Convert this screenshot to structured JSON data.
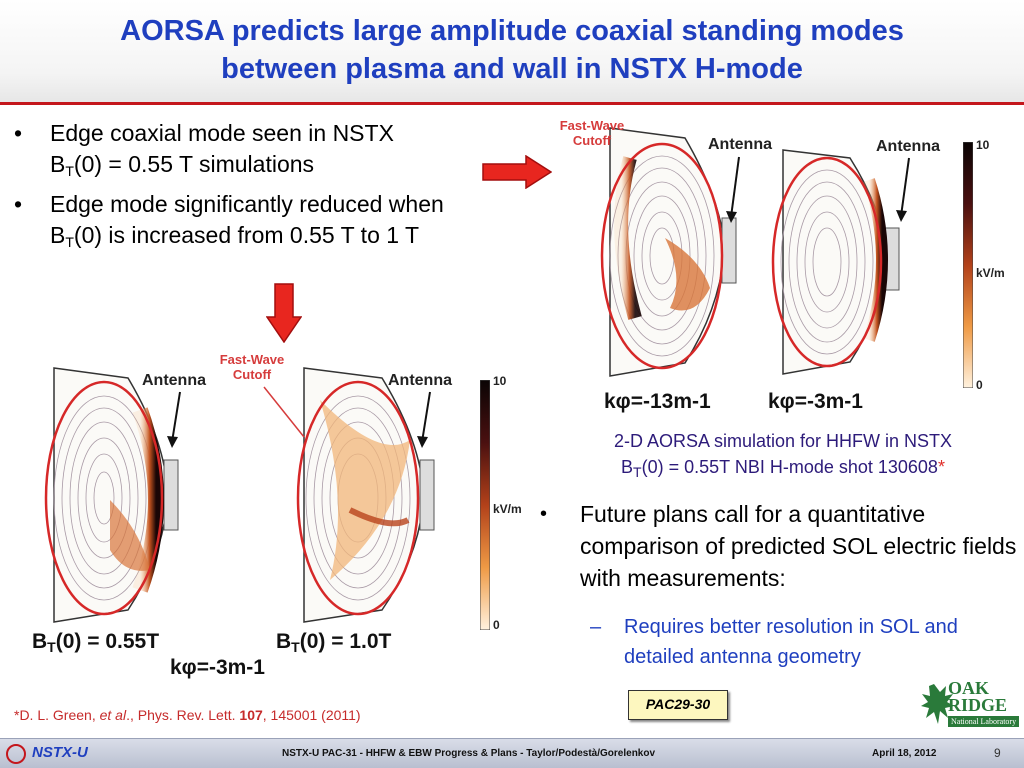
{
  "title": {
    "line1": "AORSA predicts large amplitude coaxial standing modes",
    "line2": "between plasma and wall in NSTX H-mode"
  },
  "bullets": [
    {
      "pre": "Edge coaxial mode seen in NSTX",
      "b": "B",
      "sub": "T",
      "post": "(0) = 0.55 T simulations"
    },
    {
      "pre": "Edge mode significantly reduced when",
      "b": "B",
      "sub": "T",
      "post": "(0) is increased from 0.55 T to 1 T"
    }
  ],
  "bullet_glyph": "•",
  "plots": {
    "top_left": {
      "antenna": "Antenna",
      "cutoff_line1": "Fast-Wave",
      "cutoff_line2": "Cutoff",
      "k_label": "kφ=-13m-1"
    },
    "top_right": {
      "antenna": "Antenna",
      "k_label": "kφ=-3m-1"
    },
    "top_colorbar": {
      "max": "10",
      "min": "0",
      "unit": "kV/m"
    },
    "bottom_left": {
      "antenna": "Antenna",
      "b_label_b": "B",
      "b_label_sub": "T",
      "b_label_post": "(0) = 0.55T"
    },
    "bottom_right": {
      "antenna": "Antenna",
      "cutoff_line1": "Fast-Wave",
      "cutoff_line2": "Cutoff",
      "b_label_b": "B",
      "b_label_sub": "T",
      "b_label_post": "(0) = 1.0T"
    },
    "bottom_k_label": "kφ=-3m-1",
    "bottom_colorbar": {
      "max": "10",
      "min": "0",
      "unit": "kV/m"
    }
  },
  "caption": {
    "line1": "2-D AORSA simulation for HHFW in NSTX",
    "line2_b": "B",
    "line2_sub": "T",
    "line2_post": "(0) = 0.55T NBI H-mode shot 130608",
    "star": "*"
  },
  "future": {
    "text": "Future plans call for a quantitative comparison of predicted SOL electric fields with measurements:",
    "sub_dash": "–",
    "sub_text": "Requires better resolution in SOL and detailed antenna geometry"
  },
  "pac_badge": "PAC29-30",
  "reference": {
    "pre": "*D. L. Green, ",
    "etal": "et al",
    "mid": "., Phys. Rev. Lett. ",
    "vol": "107",
    "post": ", 145001 (2011)"
  },
  "logo": {
    "line1": "OAK",
    "line2": "RIDGE",
    "lab": "National Laboratory"
  },
  "footer": {
    "logo_text": "NSTX-U",
    "center": "NSTX-U PAC-31 - HHFW & EBW Progress & Plans  - Taylor/Podestà/Gorelenkov",
    "date": "April 18, 2012",
    "page": "9"
  },
  "colors": {
    "title": "#1f3fbf",
    "accent_red": "#c4161c",
    "caption": "#2d1b7a",
    "badge_bg": "#fdf7bf",
    "logo_green": "#2a7a3a"
  }
}
